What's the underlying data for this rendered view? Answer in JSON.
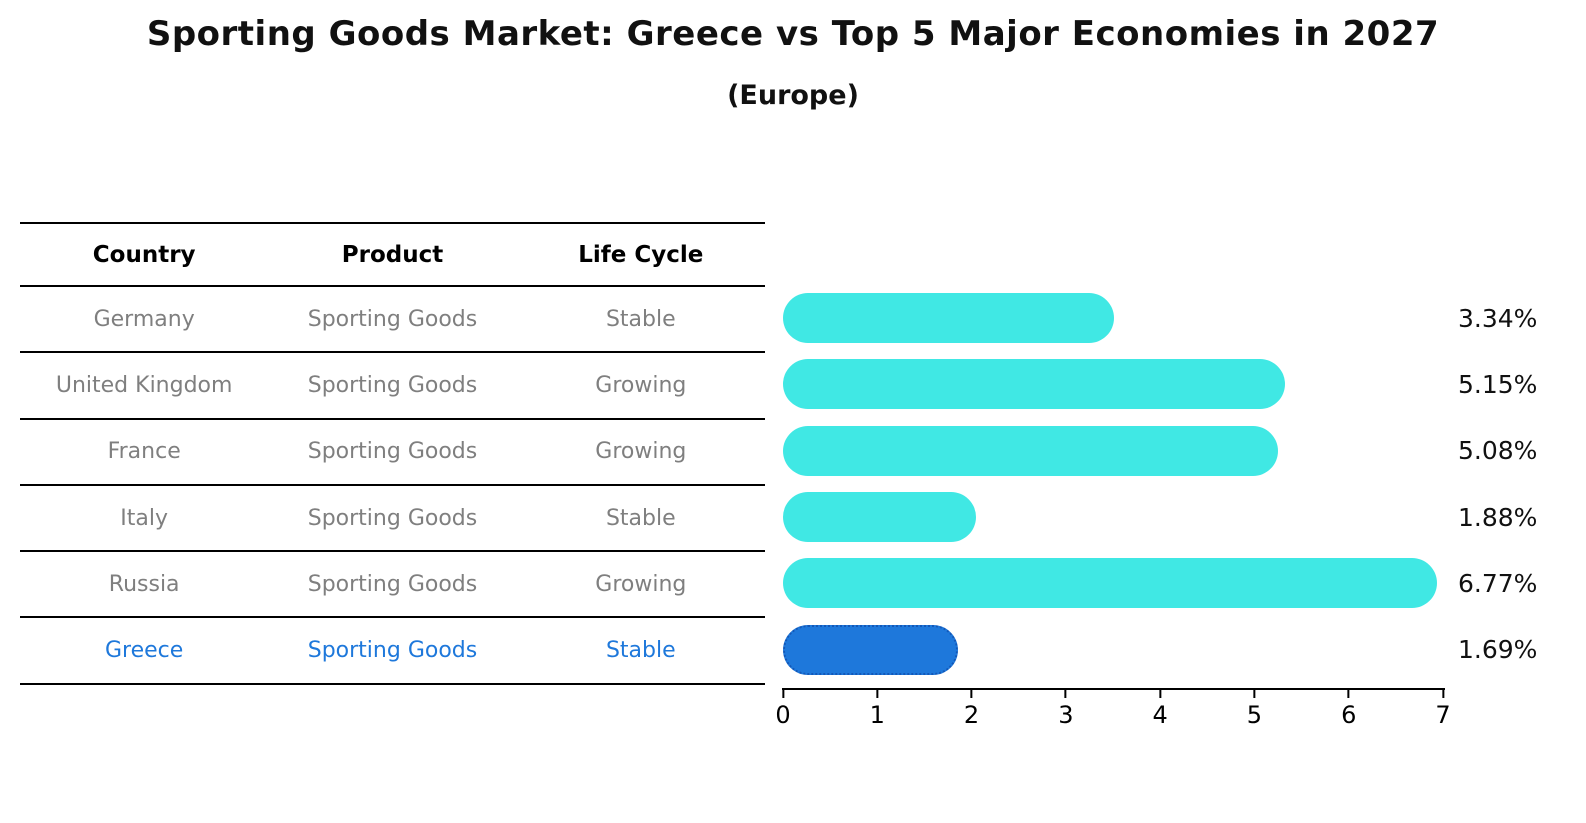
{
  "title": "Sporting Goods Market: Greece vs Top 5 Major Economies in 2027",
  "subtitle": "(Europe)",
  "table": {
    "headers": [
      "Country",
      "Product",
      "Life Cycle"
    ],
    "rows": [
      {
        "country": "Germany",
        "product": "Sporting Goods",
        "life_cycle": "Stable",
        "highlight": false
      },
      {
        "country": "United Kingdom",
        "product": "Sporting Goods",
        "life_cycle": "Growing",
        "highlight": false
      },
      {
        "country": "France",
        "product": "Sporting Goods",
        "life_cycle": "Growing",
        "highlight": false
      },
      {
        "country": "Italy",
        "product": "Sporting Goods",
        "life_cycle": "Stable",
        "highlight": false
      },
      {
        "country": "Russia",
        "product": "Sporting Goods",
        "life_cycle": "Growing",
        "highlight": false
      },
      {
        "country": "Greece",
        "product": "Sporting Goods",
        "life_cycle": "Stable",
        "highlight": true
      }
    ]
  },
  "chart_data": {
    "type": "bar",
    "orientation": "horizontal",
    "title": "Sporting Goods Market: Greece vs Top 5 Major Economies in 2027 (Europe)",
    "categories": [
      "Germany",
      "United Kingdom",
      "France",
      "Italy",
      "Russia",
      "Greece"
    ],
    "values": [
      3.34,
      5.15,
      5.08,
      1.88,
      6.77,
      1.69
    ],
    "value_labels": [
      "3.34%",
      "5.15%",
      "5.08%",
      "1.88%",
      "6.77%",
      "1.69%"
    ],
    "xlim": [
      0,
      7
    ],
    "x_ticks": [
      0,
      1,
      2,
      3,
      4,
      5,
      6,
      7
    ],
    "grid": false,
    "legend": "none",
    "highlight_category": "Greece",
    "bar_color": "#40E8E4",
    "highlight_color": "#1E78DB",
    "highlight_border_color": "#1358B8",
    "highlight_text_color": "#1E78DB"
  }
}
